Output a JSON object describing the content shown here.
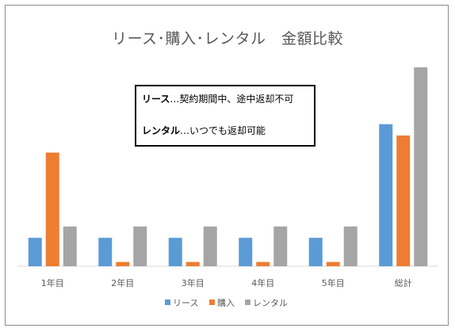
{
  "chart_data": {
    "type": "bar",
    "title": "リース･購入･レンタル　金額比較",
    "xlabel": "",
    "ylabel": "",
    "categories": [
      "1年目",
      "2年目",
      "3年目",
      "4年目",
      "5年目",
      "総計"
    ],
    "series": [
      {
        "name": "リース",
        "color": "#5b9bd5",
        "values": [
          20,
          20,
          20,
          20,
          20,
          100
        ]
      },
      {
        "name": "購入",
        "color": "#ed7d31",
        "values": [
          80,
          3,
          3,
          3,
          3,
          92
        ]
      },
      {
        "name": "レンタル",
        "color": "#a5a5a5",
        "values": [
          28,
          28,
          28,
          28,
          28,
          140
        ]
      }
    ],
    "ylim": [
      0,
      140
    ],
    "grid": false,
    "y_axis_visible": false,
    "legend": "bottom"
  },
  "notes": {
    "line1_term": "リース",
    "line1_text": "…契約期間中、途中返却不可",
    "line2_term": "レンタル",
    "line2_text": "…いつでも返却可能"
  }
}
